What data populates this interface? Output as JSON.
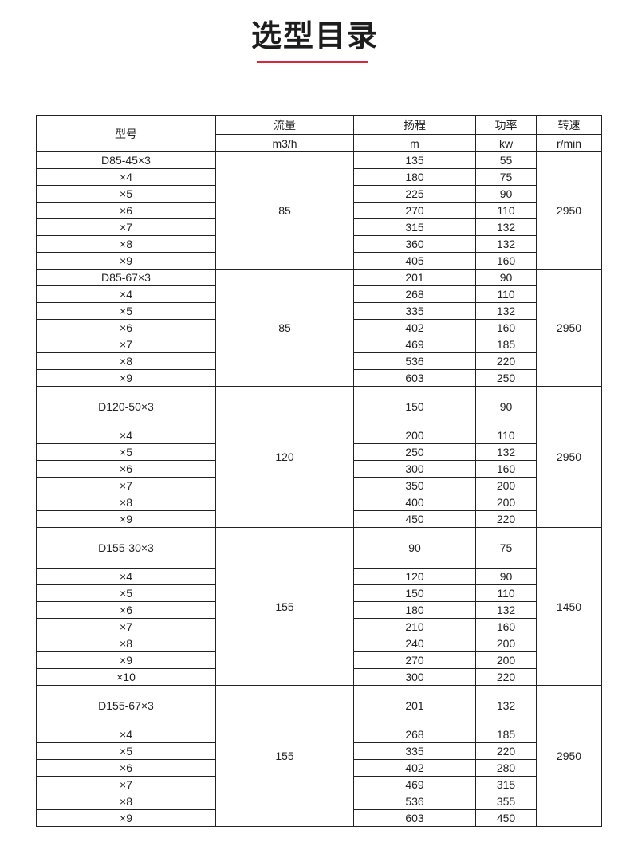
{
  "title": "选型目录",
  "accent_color": "#d9283a",
  "table": {
    "headers": {
      "model": "型号",
      "flow": "流量",
      "head": "扬程",
      "power": "功率",
      "speed": "转速"
    },
    "units": {
      "flow": "m3/h",
      "head": "m",
      "power": "kw",
      "speed": "r/min"
    },
    "groups": [
      {
        "flow": "85",
        "speed": "2950",
        "tall_first": false,
        "rows": [
          {
            "model": "D85-45×3",
            "head": "135",
            "power": "55"
          },
          {
            "model": "×4",
            "head": "180",
            "power": "75"
          },
          {
            "model": "×5",
            "head": "225",
            "power": "90"
          },
          {
            "model": "×6",
            "head": "270",
            "power": "110"
          },
          {
            "model": "×7",
            "head": "315",
            "power": "132"
          },
          {
            "model": "×8",
            "head": "360",
            "power": "132"
          },
          {
            "model": "×9",
            "head": "405",
            "power": "160"
          }
        ]
      },
      {
        "flow": "85",
        "speed": "2950",
        "tall_first": false,
        "rows": [
          {
            "model": "D85-67×3",
            "head": "201",
            "power": "90"
          },
          {
            "model": "×4",
            "head": "268",
            "power": "110"
          },
          {
            "model": "×5",
            "head": "335",
            "power": "132"
          },
          {
            "model": "×6",
            "head": "402",
            "power": "160"
          },
          {
            "model": "×7",
            "head": "469",
            "power": "185"
          },
          {
            "model": "×8",
            "head": "536",
            "power": "220"
          },
          {
            "model": "×9",
            "head": "603",
            "power": "250"
          }
        ]
      },
      {
        "flow": "120",
        "speed": "2950",
        "tall_first": true,
        "rows": [
          {
            "model": "D120-50×3",
            "head": "150",
            "power": "90"
          },
          {
            "model": "×4",
            "head": "200",
            "power": "110"
          },
          {
            "model": "×5",
            "head": "250",
            "power": "132"
          },
          {
            "model": "×6",
            "head": "300",
            "power": "160"
          },
          {
            "model": "×7",
            "head": "350",
            "power": "200"
          },
          {
            "model": "×8",
            "head": "400",
            "power": "200"
          },
          {
            "model": "×9",
            "head": "450",
            "power": "220"
          }
        ]
      },
      {
        "flow": "155",
        "speed": "1450",
        "tall_first": true,
        "rows": [
          {
            "model": "D155-30×3",
            "head": "90",
            "power": "75"
          },
          {
            "model": "×4",
            "head": "120",
            "power": "90"
          },
          {
            "model": "×5",
            "head": "150",
            "power": "110"
          },
          {
            "model": "×6",
            "head": "180",
            "power": "132"
          },
          {
            "model": "×7",
            "head": "210",
            "power": "160"
          },
          {
            "model": "×8",
            "head": "240",
            "power": "200"
          },
          {
            "model": "×9",
            "head": "270",
            "power": "200"
          },
          {
            "model": "×10",
            "head": "300",
            "power": "220"
          }
        ]
      },
      {
        "flow": "155",
        "speed": "2950",
        "tall_first": true,
        "rows": [
          {
            "model": "D155-67×3",
            "head": "201",
            "power": "132"
          },
          {
            "model": "×4",
            "head": "268",
            "power": "185"
          },
          {
            "model": "×5",
            "head": "335",
            "power": "220"
          },
          {
            "model": "×6",
            "head": "402",
            "power": "280"
          },
          {
            "model": "×7",
            "head": "469",
            "power": "315"
          },
          {
            "model": "×8",
            "head": "536",
            "power": "355"
          },
          {
            "model": "×9",
            "head": "603",
            "power": "450"
          }
        ]
      }
    ]
  }
}
